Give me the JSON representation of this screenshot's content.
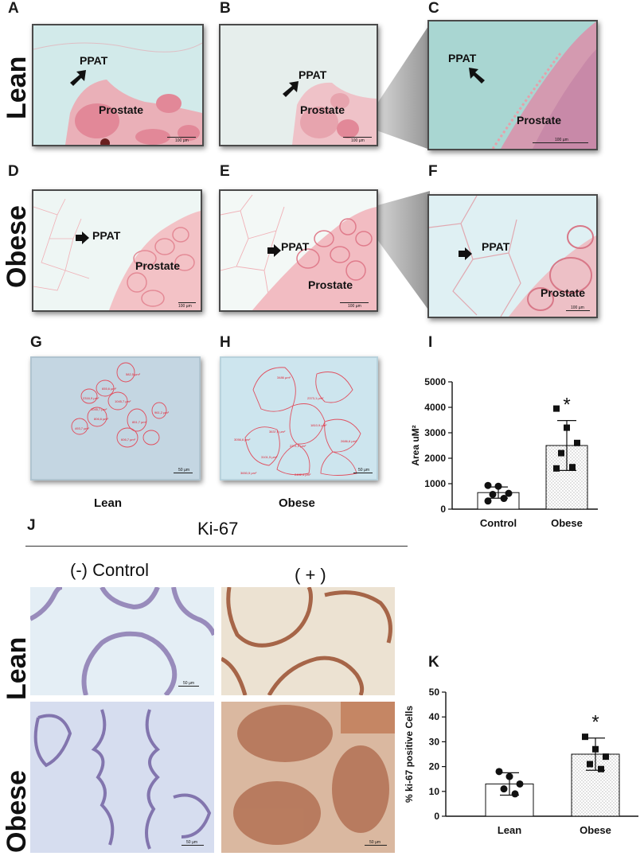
{
  "panels": {
    "A": "A",
    "B": "B",
    "C": "C",
    "D": "D",
    "E": "E",
    "F": "F",
    "G": "G",
    "H": "H",
    "I": "I",
    "J": "J",
    "K": "K"
  },
  "rows": {
    "lean": "Lean",
    "obese": "Obese"
  },
  "micro_labels": {
    "ppat": "PPAT",
    "prostate": "Prostate"
  },
  "scale": {
    "um100": "100 µm",
    "um50": "50 µm"
  },
  "area_labels": {
    "lean": [
      "582,5 µm²",
      "655,6 µm²",
      "1045,7 µm²",
      "2316,9 µm²",
      "1045,7 µm²",
      "493,7 µm²",
      "806,6 µm²",
      "851,7 µm²",
      "961,2 µm²",
      "606,7 µm²"
    ],
    "obese": [
      "3486 µm²",
      "2373,1 µm²",
      "1810,9 µm²",
      "3637,5 µm²",
      "3056,6 µm²",
      "3101,5 µm²",
      "2271,9 µm²",
      "2686,6 µm²",
      "3650,5 µm²",
      "2402,4 µm²"
    ]
  },
  "captions": {
    "lean": "Lean",
    "obese": "Obese"
  },
  "ki67": {
    "title": "Ki-67",
    "neg": "(-) Control",
    "pos": "( + )"
  },
  "colors": {
    "he_pink": "#e07a8a",
    "he_bg": "#c8e6e8",
    "ihc_blue": "#8fa8cc",
    "ihc_brown": "#9a4e2e",
    "bar_fill": "#ffffff",
    "stipple": "#9a9a9a"
  },
  "chart_data": [
    {
      "type": "bar",
      "panel": "I",
      "categories": [
        "Control",
        "Obese"
      ],
      "values": [
        650,
        2500
      ],
      "errors": [
        220,
        980
      ],
      "points": [
        [
          930,
          900,
          620,
          580,
          420,
          320
        ],
        [
          3950,
          3200,
          2600,
          2200,
          1650,
          1600
        ]
      ],
      "markers": [
        "circle",
        "square"
      ],
      "fills": [
        "plain",
        "stipple"
      ],
      "ylabel": "Area uM²",
      "ylim": [
        0,
        5000
      ],
      "yticks": [
        0,
        1000,
        2000,
        3000,
        4000,
        5000
      ],
      "significance": [
        "",
        "*"
      ]
    },
    {
      "type": "bar",
      "panel": "K",
      "categories": [
        "Lean",
        "Obese"
      ],
      "values": [
        13,
        25
      ],
      "errors": [
        4.5,
        6.5
      ],
      "points": [
        [
          18,
          16,
          13,
          11,
          9
        ],
        [
          32,
          27,
          24,
          21,
          19
        ]
      ],
      "markers": [
        "circle",
        "square"
      ],
      "fills": [
        "plain",
        "stipple"
      ],
      "ylabel": "% ki-67 positive Cells",
      "ylim": [
        0,
        50
      ],
      "yticks": [
        0,
        10,
        20,
        30,
        40,
        50
      ],
      "significance": [
        "",
        "*"
      ]
    }
  ]
}
